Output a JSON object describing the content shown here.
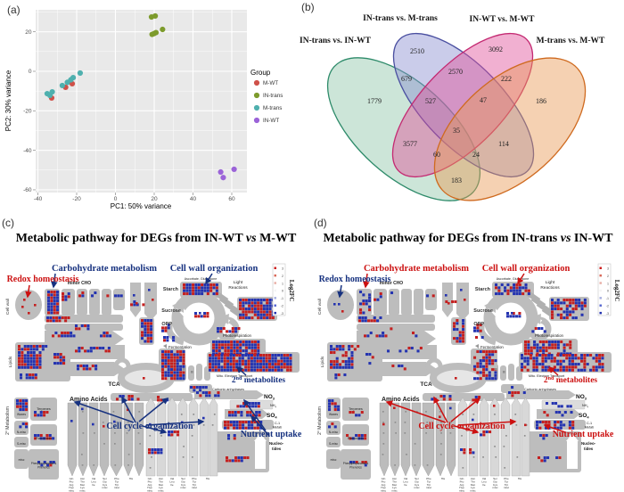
{
  "figure": {
    "panel_a_label": "(a)",
    "panel_b_label": "(b)",
    "panel_c_label": "(c)",
    "panel_d_label": "(d)"
  },
  "pca": {
    "legend_title": "Group",
    "chart_data": {
      "type": "scatter",
      "xlabel": "PC1: 50% variance",
      "ylabel": "PC2: 30% variance",
      "xticks": [
        -40,
        -20,
        0,
        20,
        40,
        60
      ],
      "yticks": [
        20,
        0,
        -20,
        -40,
        -60
      ],
      "xlim": [
        -41,
        68
      ],
      "ylim": [
        -61.5,
        31
      ],
      "series": [
        {
          "name": "M-WT",
          "color": "#cf5149",
          "points": [
            [
              -32.9,
              -13.5
            ],
            [
              -25.7,
              -8.1
            ],
            [
              -22.3,
              -6.3
            ]
          ]
        },
        {
          "name": "IN-trans",
          "color": "#7d9b2c",
          "points": [
            [
              18.6,
              27.5
            ],
            [
              20.5,
              28.0
            ],
            [
              18.9,
              18.7
            ],
            [
              19.9,
              19.1
            ],
            [
              20.9,
              19.6
            ],
            [
              24.3,
              21.2
            ]
          ]
        },
        {
          "name": "M-trans",
          "color": "#4fb0ae",
          "points": [
            [
              -35.2,
              -11.3
            ],
            [
              -33.8,
              -12.2
            ],
            [
              -32.6,
              -10.4
            ],
            [
              -27.4,
              -7.2
            ],
            [
              -24.8,
              -5.6
            ],
            [
              -23.0,
              -4.3
            ],
            [
              -21.8,
              -3.2
            ],
            [
              -18.2,
              -0.9
            ]
          ]
        },
        {
          "name": "IN-WT",
          "color": "#9b63d8",
          "points": [
            [
              54.3,
              -51.0
            ],
            [
              55.6,
              -53.8
            ],
            [
              61.2,
              -49.6
            ]
          ]
        }
      ]
    }
  },
  "venn": {
    "chart_data": {
      "type": "venn4",
      "sets": [
        "IN-trans vs. IN-WT",
        "IN-trans vs. M-trans",
        "IN-WT vs. M-WT",
        "M-trans vs. M-WT"
      ],
      "regions": {
        "A": 1779,
        "B": 2510,
        "C": 3092,
        "D": 186,
        "AB": 679,
        "AC": 3577,
        "AD": 183,
        "BC": 2570,
        "BD": 114,
        "CD": 222,
        "ABC": 527,
        "ABD": 24,
        "ACD": 60,
        "BCD": 47,
        "ABCD": 35
      }
    },
    "labels": {
      "top_left": "IN-trans vs.  M-trans",
      "top_right": "IN-WT vs. M-WT",
      "left": "IN-trans vs. IN-WT",
      "right": "M-trans vs. M-WT"
    },
    "colors": {
      "A_fill": "#8fc5a8",
      "A_stroke": "#2e8b6a",
      "B_fill": "#8a8fd0",
      "B_stroke": "#4a4fa0",
      "C_fill": "#e0509a",
      "C_stroke": "#c42a72",
      "D_fill": "#e89a55",
      "D_stroke": "#cf6a1f"
    }
  },
  "pathway_shared": {
    "legend_title": "Log2FC",
    "legend_ticks": [
      "3",
      "2",
      "1",
      "0",
      "-1",
      "-2",
      "-3"
    ],
    "up_color": "#c42020",
    "down_color": "#2433b0",
    "labels": {
      "cell_wall": "Cell wall",
      "minor_cho": "minor CHO",
      "lipids": "Lipids",
      "sec_metabolism": "2° Metabolism",
      "starch": "Starch",
      "sucrose": "Sucrose",
      "opp": "OPP",
      "light1": "Light",
      "light2": "Reactions",
      "ascorbate": "Ascorbate, Glutathione",
      "photorespiration": "Photorespiration",
      "fermentation": "Fermentation",
      "mito": "Mito. Electron Transport",
      "carbonic": "Carbonic anhydrases",
      "tca": "TCA",
      "amino_acids": "Amino Acids",
      "terpenes": "Terpenes",
      "flavonoids": "Flavonoids",
      "phenyl1": "Phenylpropanoids &",
      "phenyl2": "Phenolics",
      "waxes": "Waxes",
      "n_misc": "N-misc",
      "s_misc": "S-misc",
      "misc": "misc",
      "no3": "NO",
      "no3_sub": "3",
      "nh4": "NH",
      "nh4_sub": "4",
      "so4": "SO",
      "so4_sub": "4",
      "c1a": "C-1",
      "c1b": "Metab",
      "nucleo1": "Nucleo-",
      "nucleo2": "tides"
    },
    "aa_groups": [
      [
        "Gln",
        "Pro",
        "Arg",
        "Hyp",
        "misc"
      ],
      [
        "Asn",
        "Thr",
        "Met",
        "Lys",
        "misc"
      ],
      [
        "Val",
        "Leu",
        "Ile"
      ],
      [
        "Ser",
        "Gly",
        "Cys",
        "misc"
      ],
      [
        "Phe",
        "Tyr",
        "Trp",
        "misc"
      ],
      [
        "His"
      ]
    ],
    "annotations": {
      "carb": "Carbohydrate metabolism",
      "redox": "Redox homeostasis",
      "cellwall_org": "Cell wall organization",
      "cellcycle": "Cell cycle organization",
      "secmet_base": "2",
      "secmet_sup": "nd",
      "secmet_rest": " metabolites",
      "nutrient": "Nutrient uptake"
    }
  },
  "pathway_c": {
    "title_prefix": "Metabolic pathway for DEGs from",
    "group1": "IN-WT",
    "vs": "vs",
    "group2": "M-WT",
    "primary_color": "#16317f",
    "secondary_color": "#cc1111"
  },
  "pathway_d": {
    "title_prefix": "Metabolic pathway for DEGs from",
    "group1": "IN-trans",
    "vs": "vs",
    "group2": "IN-WT",
    "primary_color": "#cc1111",
    "secondary_color": "#16317f"
  }
}
